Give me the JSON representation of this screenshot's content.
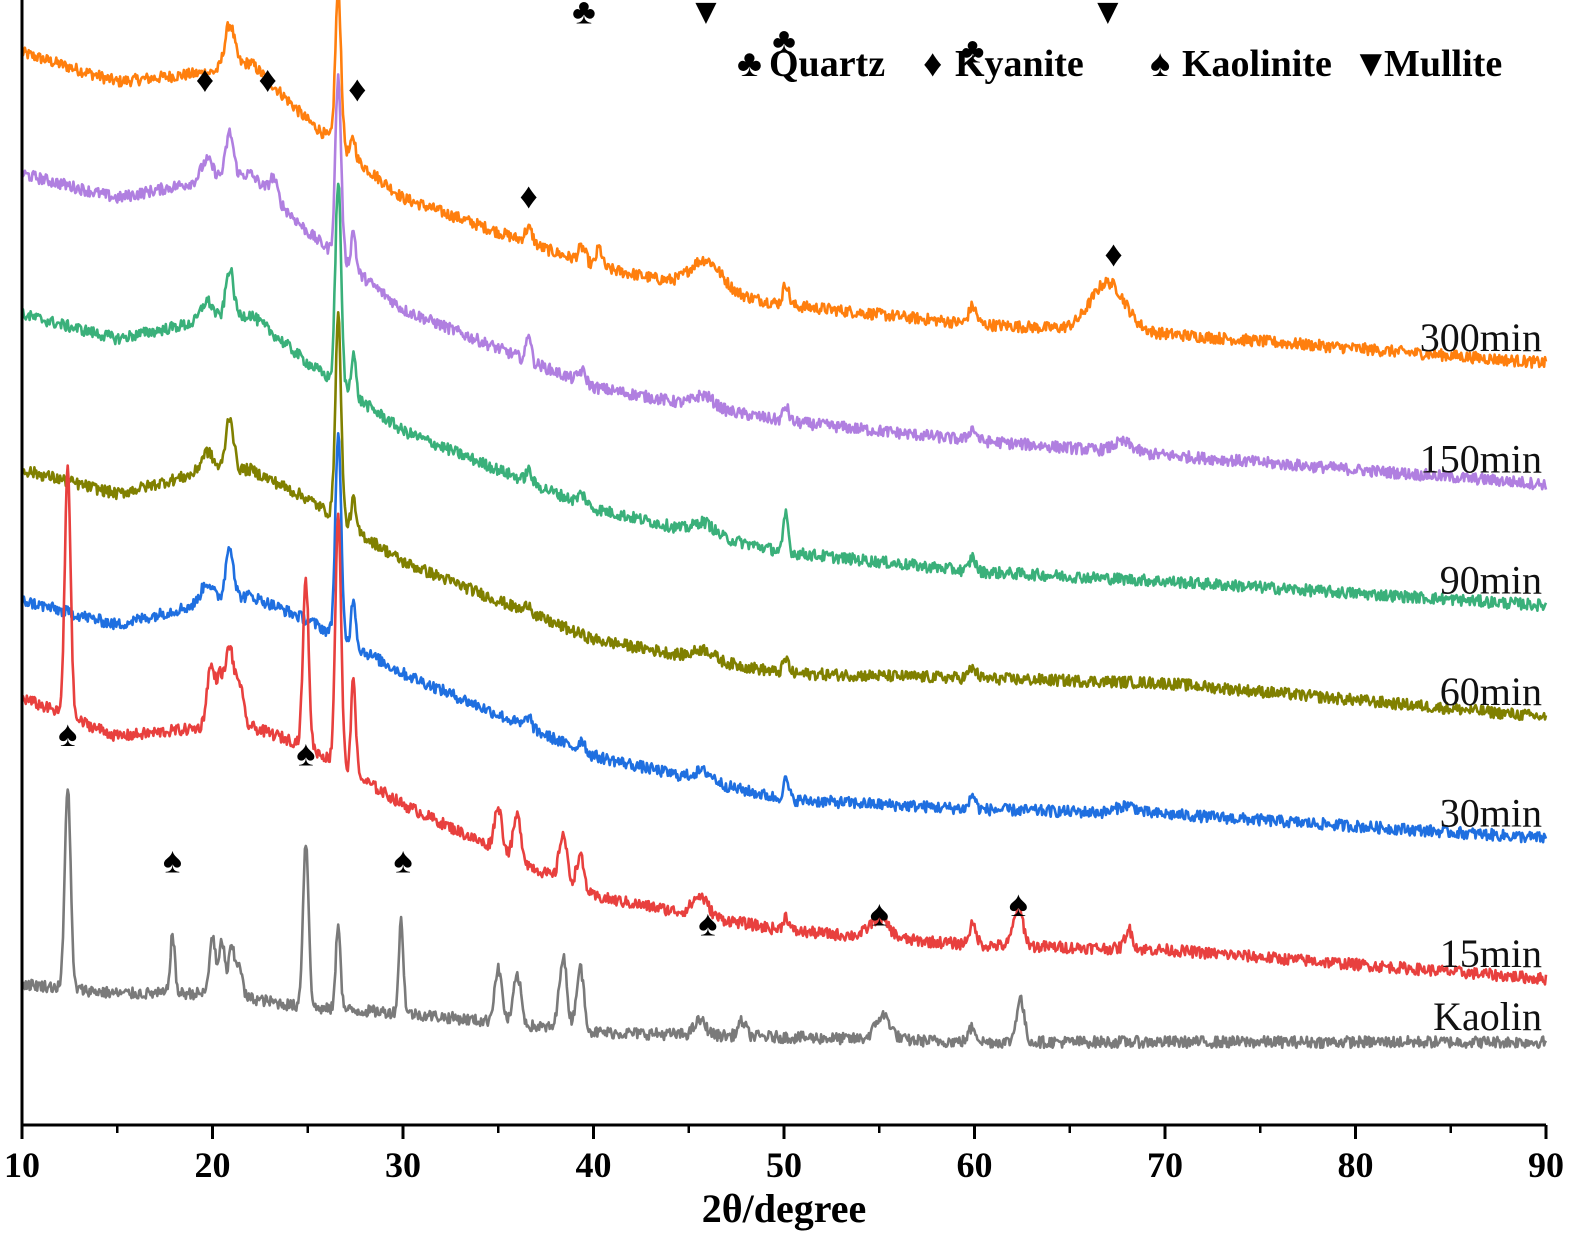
{
  "chart_data": {
    "type": "line",
    "title": "",
    "xlabel": "2θ/degree",
    "ylabel": "",
    "xlim": [
      10,
      90
    ],
    "xticks": [
      "10",
      "20",
      "30",
      "40",
      "50",
      "60",
      "70",
      "80",
      "90"
    ],
    "y_axis_visible": false,
    "grid": false,
    "legend_position": "top-right",
    "legend": [
      {
        "symbol": "♣",
        "symbol_name": "club-icon",
        "label": "Quartz"
      },
      {
        "symbol": "♦",
        "symbol_name": "diamond-icon",
        "label": "Kyanite"
      },
      {
        "symbol": "♠",
        "symbol_name": "spade-icon",
        "label": "Kaolinite"
      },
      {
        "symbol": "▼",
        "symbol_name": "down-triangle-icon",
        "label": "Mullite"
      }
    ],
    "series": [
      {
        "name": "300min",
        "color": "#ff7f0e",
        "offset": 7.0,
        "baseline": [
          [
            10,
            3.2
          ],
          [
            15,
            2.9
          ],
          [
            20,
            3.0
          ],
          [
            22,
            3.1
          ],
          [
            25,
            2.5
          ],
          [
            30,
            1.7
          ],
          [
            40,
            1.0
          ],
          [
            50,
            0.6
          ],
          [
            60,
            0.4
          ],
          [
            70,
            0.3
          ],
          [
            90,
            0.0
          ]
        ],
        "peaks": [
          [
            20.9,
            0.45,
            0.25
          ],
          [
            26.6,
            1.6,
            0.15
          ],
          [
            27.4,
            0.2,
            0.12
          ],
          [
            36.6,
            0.15,
            0.2
          ],
          [
            39.4,
            0.15,
            0.2
          ],
          [
            40.3,
            0.2,
            0.15
          ],
          [
            45.9,
            0.3,
            0.8
          ],
          [
            50.1,
            0.22,
            0.15
          ],
          [
            59.9,
            0.18,
            0.2
          ],
          [
            67.0,
            0.5,
            0.9
          ]
        ]
      },
      {
        "name": "150min",
        "color": "#b07fe0",
        "offset": 5.75,
        "baseline": [
          [
            10,
            3.2
          ],
          [
            15,
            2.95
          ],
          [
            20,
            3.15
          ],
          [
            22,
            3.2
          ],
          [
            25,
            2.6
          ],
          [
            30,
            1.8
          ],
          [
            40,
            1.0
          ],
          [
            50,
            0.65
          ],
          [
            60,
            0.45
          ],
          [
            70,
            0.3
          ],
          [
            90,
            0.0
          ]
        ],
        "peaks": [
          [
            19.7,
            0.2,
            0.3
          ],
          [
            20.9,
            0.45,
            0.2
          ],
          [
            23.2,
            0.2,
            0.2
          ],
          [
            26.6,
            1.85,
            0.15
          ],
          [
            27.4,
            0.4,
            0.12
          ],
          [
            36.6,
            0.3,
            0.12
          ],
          [
            39.4,
            0.12,
            0.2
          ],
          [
            45.8,
            0.12,
            0.5
          ],
          [
            50.1,
            0.15,
            0.15
          ],
          [
            59.9,
            0.12,
            0.2
          ],
          [
            67.8,
            0.1,
            0.5
          ]
        ]
      },
      {
        "name": "90min",
        "color": "#3ab07a",
        "offset": 4.5,
        "baseline": [
          [
            10,
            3.0
          ],
          [
            15,
            2.75
          ],
          [
            20,
            2.95
          ],
          [
            22,
            3.0
          ],
          [
            25,
            2.5
          ],
          [
            30,
            1.8
          ],
          [
            40,
            1.0
          ],
          [
            50,
            0.55
          ],
          [
            60,
            0.35
          ],
          [
            70,
            0.25
          ],
          [
            90,
            0.0
          ]
        ],
        "peaks": [
          [
            19.7,
            0.2,
            0.3
          ],
          [
            20.9,
            0.5,
            0.2
          ],
          [
            26.6,
            2.1,
            0.15
          ],
          [
            27.4,
            0.45,
            0.12
          ],
          [
            36.6,
            0.12,
            0.15
          ],
          [
            39.4,
            0.1,
            0.2
          ],
          [
            45.8,
            0.12,
            0.5
          ],
          [
            50.1,
            0.4,
            0.12
          ],
          [
            59.9,
            0.15,
            0.15
          ]
        ]
      },
      {
        "name": "60min",
        "color": "#808000",
        "offset": 3.35,
        "baseline": [
          [
            10,
            2.55
          ],
          [
            15,
            2.3
          ],
          [
            20,
            2.55
          ],
          [
            22,
            2.55
          ],
          [
            25,
            2.25
          ],
          [
            30,
            1.6
          ],
          [
            40,
            0.8
          ],
          [
            50,
            0.45
          ],
          [
            60,
            0.4
          ],
          [
            70,
            0.35
          ],
          [
            90,
            0.0
          ]
        ],
        "peaks": [
          [
            19.7,
            0.2,
            0.3
          ],
          [
            20.9,
            0.55,
            0.2
          ],
          [
            26.6,
            2.1,
            0.15
          ],
          [
            27.4,
            0.3,
            0.12
          ],
          [
            36.6,
            0.1,
            0.15
          ],
          [
            45.8,
            0.1,
            0.5
          ],
          [
            50.1,
            0.15,
            0.15
          ],
          [
            59.9,
            0.1,
            0.2
          ]
        ]
      },
      {
        "name": "30min",
        "color": "#1f6fe0",
        "offset": 2.1,
        "baseline": [
          [
            10,
            2.45
          ],
          [
            15,
            2.2
          ],
          [
            20,
            2.45
          ],
          [
            22,
            2.5
          ],
          [
            25,
            2.25
          ],
          [
            30,
            1.7
          ],
          [
            40,
            0.85
          ],
          [
            50,
            0.4
          ],
          [
            60,
            0.3
          ],
          [
            70,
            0.25
          ],
          [
            90,
            0.0
          ]
        ],
        "peaks": [
          [
            19.7,
            0.2,
            0.3
          ],
          [
            20.9,
            0.55,
            0.2
          ],
          [
            26.6,
            2.1,
            0.15
          ],
          [
            27.4,
            0.5,
            0.12
          ],
          [
            36.6,
            0.12,
            0.15
          ],
          [
            39.4,
            0.12,
            0.15
          ],
          [
            45.8,
            0.1,
            0.5
          ],
          [
            50.1,
            0.2,
            0.15
          ],
          [
            59.9,
            0.15,
            0.15
          ],
          [
            68.0,
            0.08,
            0.5
          ]
        ]
      },
      {
        "name": "15min",
        "color": "#e8403e",
        "offset": 0.65,
        "baseline": [
          [
            10,
            2.9
          ],
          [
            15,
            2.5
          ],
          [
            20,
            2.6
          ],
          [
            22,
            2.6
          ],
          [
            25,
            2.4
          ],
          [
            30,
            1.8
          ],
          [
            40,
            0.85
          ],
          [
            50,
            0.5
          ],
          [
            60,
            0.35
          ],
          [
            70,
            0.3
          ],
          [
            90,
            0.0
          ]
        ],
        "peaks": [
          [
            12.4,
            2.6,
            0.15
          ],
          [
            19.9,
            0.6,
            0.2
          ],
          [
            20.4,
            0.5,
            0.2
          ],
          [
            20.9,
            0.8,
            0.2
          ],
          [
            21.4,
            0.45,
            0.2
          ],
          [
            24.9,
            1.7,
            0.15
          ],
          [
            26.6,
            2.6,
            0.15
          ],
          [
            27.4,
            1.0,
            0.12
          ],
          [
            35.0,
            0.45,
            0.2
          ],
          [
            36.0,
            0.45,
            0.2
          ],
          [
            38.4,
            0.5,
            0.2
          ],
          [
            39.3,
            0.35,
            0.2
          ],
          [
            45.6,
            0.2,
            0.4
          ],
          [
            50.1,
            0.15,
            0.15
          ],
          [
            55.0,
            0.2,
            0.5
          ],
          [
            59.9,
            0.2,
            0.2
          ],
          [
            62.3,
            0.4,
            0.25
          ],
          [
            68.1,
            0.2,
            0.2
          ]
        ]
      },
      {
        "name": "Kaolin",
        "color": "#7a7a7a",
        "offset": 0.0,
        "baseline": [
          [
            10,
            0.6
          ],
          [
            15,
            0.5
          ],
          [
            20,
            0.5
          ],
          [
            22,
            0.45
          ],
          [
            25,
            0.35
          ],
          [
            30,
            0.3
          ],
          [
            40,
            0.1
          ],
          [
            50,
            0.05
          ],
          [
            60,
            0.0
          ],
          [
            70,
            0.0
          ],
          [
            90,
            0.0
          ]
        ],
        "peaks": [
          [
            12.4,
            2.1,
            0.15
          ],
          [
            17.9,
            0.6,
            0.12
          ],
          [
            20.0,
            0.6,
            0.15
          ],
          [
            20.5,
            0.55,
            0.15
          ],
          [
            21.0,
            0.5,
            0.15
          ],
          [
            21.4,
            0.35,
            0.15
          ],
          [
            24.9,
            1.7,
            0.15
          ],
          [
            26.6,
            0.9,
            0.12
          ],
          [
            29.9,
            0.95,
            0.12
          ],
          [
            35.0,
            0.55,
            0.2
          ],
          [
            36.0,
            0.5,
            0.2
          ],
          [
            38.4,
            0.75,
            0.2
          ],
          [
            39.3,
            0.65,
            0.2
          ],
          [
            45.6,
            0.15,
            0.3
          ],
          [
            47.8,
            0.15,
            0.2
          ],
          [
            55.2,
            0.25,
            0.4
          ],
          [
            59.9,
            0.15,
            0.2
          ],
          [
            62.4,
            0.45,
            0.2
          ]
        ]
      }
    ],
    "annotations": [
      {
        "symbol": "♣",
        "symbol_name": "club-icon",
        "x": 21.0,
        "y": 11.6
      },
      {
        "symbol": "♦",
        "symbol_name": "diamond-icon",
        "x": 26.6,
        "y": 12.6
      },
      {
        "symbol": "▼",
        "symbol_name": "down-triangle-icon",
        "x": 36.8,
        "y": 10.8
      },
      {
        "symbol": "♣",
        "symbol_name": "club-icon",
        "x": 39.5,
        "y": 10.5
      },
      {
        "symbol": "▼",
        "symbol_name": "down-triangle-icon",
        "x": 45.9,
        "y": 10.5
      },
      {
        "symbol": "♣",
        "symbol_name": "club-icon",
        "x": 50.0,
        "y": 10.2
      },
      {
        "symbol": "♣",
        "symbol_name": "club-icon",
        "x": 59.9,
        "y": 10.1
      },
      {
        "symbol": "▼",
        "symbol_name": "down-triangle-icon",
        "x": 67.0,
        "y": 10.5
      },
      {
        "symbol": "♦",
        "symbol_name": "diamond-icon",
        "x": 19.6,
        "y": 9.8
      },
      {
        "symbol": "♦",
        "symbol_name": "diamond-icon",
        "x": 22.9,
        "y": 9.8
      },
      {
        "symbol": "♦",
        "symbol_name": "diamond-icon",
        "x": 27.6,
        "y": 9.7
      },
      {
        "symbol": "♦",
        "symbol_name": "diamond-icon",
        "x": 36.6,
        "y": 8.6
      },
      {
        "symbol": "♦",
        "symbol_name": "diamond-icon",
        "x": 67.3,
        "y": 8.0
      },
      {
        "symbol": "♠",
        "symbol_name": "spade-icon",
        "x": 12.4,
        "y": 3.05
      },
      {
        "symbol": "♠",
        "symbol_name": "spade-icon",
        "x": 17.9,
        "y": 1.75
      },
      {
        "symbol": "♠",
        "symbol_name": "spade-icon",
        "x": 24.9,
        "y": 2.85
      },
      {
        "symbol": "♠",
        "symbol_name": "spade-icon",
        "x": 30.0,
        "y": 1.75
      },
      {
        "symbol": "♠",
        "symbol_name": "spade-icon",
        "x": 46.0,
        "y": 1.1
      },
      {
        "symbol": "♠",
        "symbol_name": "spade-icon",
        "x": 55.0,
        "y": 1.2
      },
      {
        "symbol": "♠",
        "symbol_name": "spade-icon",
        "x": 62.3,
        "y": 1.3
      }
    ]
  }
}
